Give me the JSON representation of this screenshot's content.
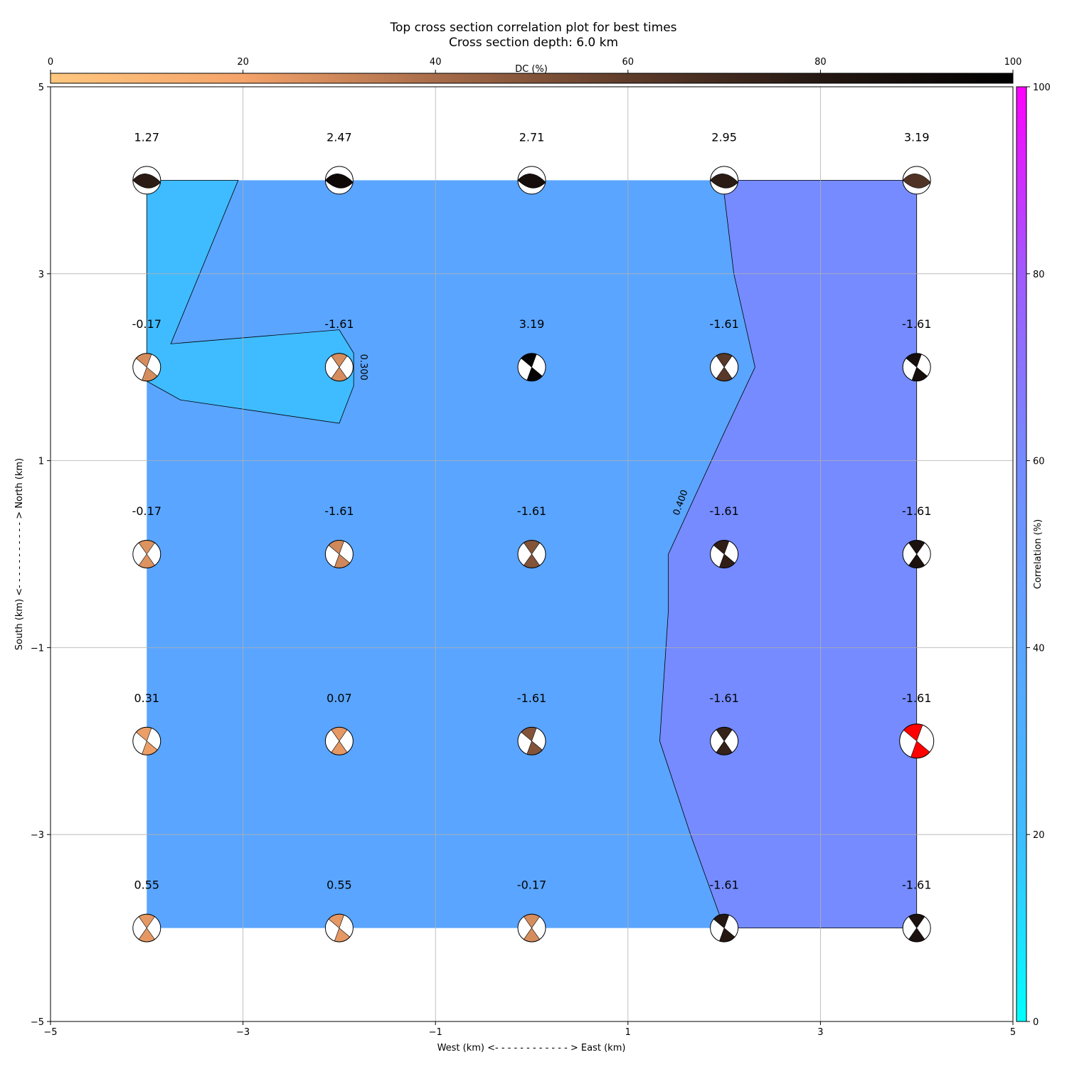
{
  "chart_data": {
    "type": "heatmap",
    "title": "Top cross section correlation plot for best times",
    "subtitle": "Cross section depth: 6.0 km",
    "xlabel": "West (km) <- - - - - - - - - - - - > East (km)",
    "ylabel": "South (km) <- - - - - - - - - - - > North (km)",
    "xlim": [
      -5,
      5
    ],
    "ylim": [
      -5,
      5
    ],
    "x_ticks": [
      -5,
      -3,
      -1,
      1,
      3,
      5
    ],
    "y_ticks": [
      -5,
      -3,
      -1,
      1,
      3,
      5
    ],
    "x_tick_labels": [
      "−5",
      "−3",
      "−1",
      "1",
      "3",
      "5"
    ],
    "y_tick_labels": [
      "−5",
      "−3",
      "−1",
      "1",
      "3",
      "5"
    ],
    "grid": true,
    "dc_colorbar": {
      "label": "DC (%)",
      "position": "top",
      "range": [
        0,
        100
      ],
      "ticks": [
        0,
        20,
        40,
        60,
        80,
        100
      ],
      "tick_labels": [
        "0",
        "20",
        "40",
        "60",
        "80",
        "100"
      ],
      "colors": [
        "#ffc77f",
        "#f4a36a",
        "#a86c4a",
        "#5e3c2a",
        "#241712",
        "#000000"
      ]
    },
    "correlation_colorbar": {
      "label": "Correlation (%)",
      "position": "right",
      "range": [
        0,
        100
      ],
      "ticks": [
        0,
        20,
        40,
        60,
        80,
        100
      ],
      "tick_labels": [
        "0",
        "20",
        "40",
        "60",
        "80",
        "100"
      ],
      "colors": [
        "#00ffff",
        "#3fbcff",
        "#5aa5ff",
        "#758bff",
        "#a05aff",
        "#ff00ff"
      ]
    },
    "contour_levels": [
      {
        "label": "0.300",
        "level": 0.3,
        "label_at": [
          -1.75,
          2.0
        ],
        "label_rotation": 90
      },
      {
        "label": "0.400",
        "level": 0.4,
        "label_at": [
          1.55,
          0.55
        ],
        "label_rotation": -70
      }
    ],
    "filled_regions": [
      {
        "name": "low",
        "color": "#3fbcff",
        "polygon": [
          [
            -4,
            4
          ],
          [
            -3.05,
            4
          ],
          [
            -3.75,
            2.25
          ],
          [
            -2,
            2.4
          ],
          [
            -1.85,
            2.15
          ],
          [
            -1.85,
            1.8
          ],
          [
            -2,
            1.4
          ],
          [
            -3.65,
            1.65
          ],
          [
            -4,
            1.85
          ]
        ]
      },
      {
        "name": "high",
        "color": "#758bff",
        "polygon": [
          [
            2,
            4
          ],
          [
            4,
            4
          ],
          [
            4,
            -4
          ],
          [
            2,
            -4
          ],
          [
            1.65,
            -3
          ],
          [
            1.33,
            -2
          ],
          [
            1.42,
            -0.6
          ],
          [
            1.42,
            0
          ],
          [
            2,
            1.3
          ],
          [
            2.32,
            2
          ],
          [
            2.1,
            3
          ],
          [
            2,
            3.85
          ]
        ]
      }
    ],
    "background_region": {
      "color": "#5aa5ff",
      "extent": [
        [
          -4,
          -4
        ],
        [
          4,
          4
        ]
      ]
    },
    "grid_points": {
      "x": [
        -4,
        -2,
        0,
        2,
        4
      ],
      "y": [
        4,
        2,
        0,
        -2,
        -4
      ],
      "time_labels": [
        [
          "1.27",
          "2.47",
          "2.71",
          "2.95",
          "3.19"
        ],
        [
          "-0.17",
          "-1.61",
          "3.19",
          "-1.61",
          "-1.61"
        ],
        [
          "-0.17",
          "-1.61",
          "-1.61",
          "-1.61",
          "-1.61"
        ],
        [
          "0.31",
          "0.07",
          "-1.61",
          "-1.61",
          "-1.61"
        ],
        [
          "0.55",
          "0.55",
          "-0.17",
          "-1.61",
          "-1.61"
        ]
      ],
      "dc_percent": [
        [
          78,
          92,
          88,
          78,
          65
        ],
        [
          28,
          28,
          98,
          62,
          88
        ],
        [
          26,
          30,
          50,
          76,
          85
        ],
        [
          22,
          24,
          50,
          74,
          72
        ],
        [
          24,
          24,
          28,
          80,
          85
        ]
      ],
      "best_solution": {
        "row": 3,
        "col": 4,
        "color": "#ff0000"
      }
    }
  }
}
